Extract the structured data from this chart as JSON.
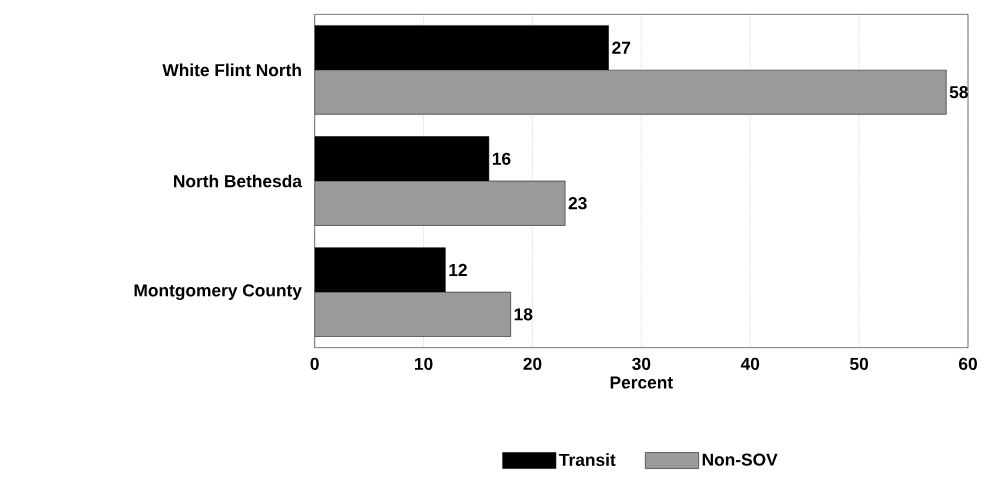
{
  "chart_data": {
    "type": "bar",
    "orientation": "horizontal",
    "categories": [
      "White Flint North",
      "North Bethesda",
      "Montgomery County"
    ],
    "series": [
      {
        "name": "Transit",
        "color": "#000000",
        "values": [
          27,
          16,
          12
        ]
      },
      {
        "name": "Non-SOV",
        "color": "#9a9a9a",
        "values": [
          58,
          23,
          18
        ]
      }
    ],
    "xlabel": "Percent",
    "xlim": [
      0,
      60
    ],
    "xticks": [
      0,
      10,
      20,
      30,
      40,
      50,
      60
    ],
    "grid": "x",
    "legend": "bottom",
    "data_labels": true
  }
}
